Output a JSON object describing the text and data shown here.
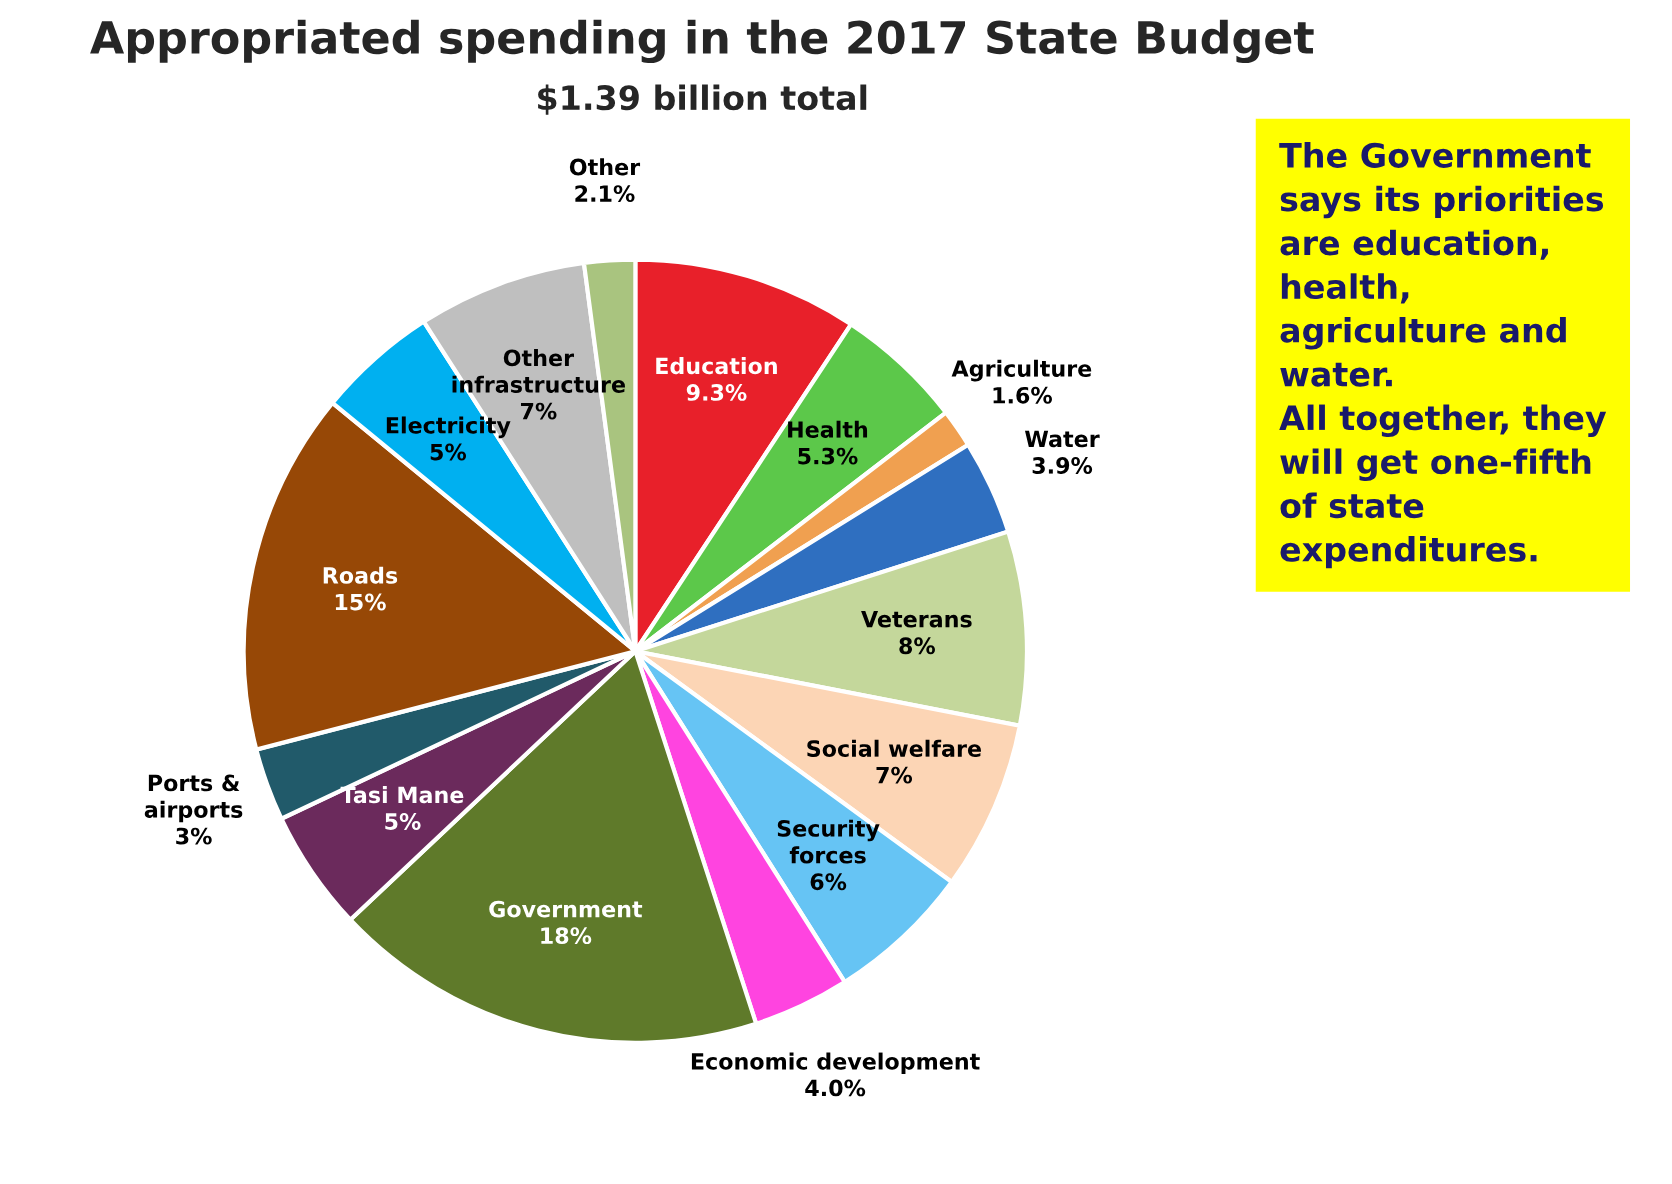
{
  "chart_data": {
    "type": "pie",
    "title": "Appropriated spending in the 2017 State Budget",
    "subtitle": "$1.39 billion total",
    "categories": [
      "Education",
      "Health",
      "Agriculture",
      "Water",
      "Veterans",
      "Social welfare",
      "Security\nforces",
      "Economic development",
      "Government",
      "Tasi Mane",
      "Ports &\nairports",
      "Roads",
      "Electricity",
      "Other\ninfrastructure",
      "Other"
    ],
    "values": [
      9.3,
      5.3,
      1.6,
      3.9,
      8,
      7,
      6,
      4.0,
      18,
      5,
      3,
      15,
      5,
      7,
      2.1
    ],
    "value_labels": [
      "9.3%",
      "5.3%",
      "1.6%",
      "3.9%",
      "8%",
      "7%",
      "6%",
      "4.0%",
      "18%",
      "5%",
      "3%",
      "15%",
      "5%",
      "7%",
      "2.1%"
    ],
    "colors": [
      "#e8202a",
      "#5cc84a",
      "#f0a050",
      "#2f6fc0",
      "#c4d79b",
      "#fcd5b5",
      "#66c4f4",
      "#ff44e0",
      "#5f7a2a",
      "#6b2a5c",
      "#215a6a",
      "#974806",
      "#00b0f0",
      "#bfbfbf",
      "#a9c47f"
    ],
    "annotations": [
      "The Government\nsays its priorities\nare education,\nhealth,\nagriculture and\nwater.\nAll together, they\nwill get one-fifth\nof state\nexpenditures."
    ]
  }
}
